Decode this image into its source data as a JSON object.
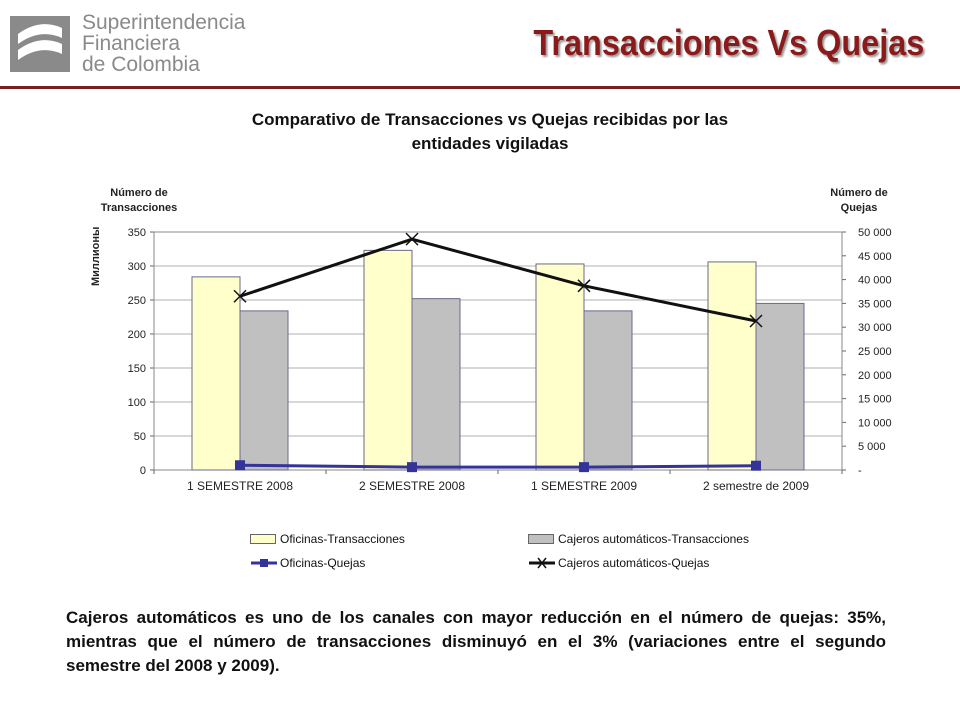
{
  "logo": {
    "icon": "superintendencia-logo-mark",
    "lines": [
      "Superintendencia",
      "Financiera",
      "de Colombia"
    ]
  },
  "slide_title": "Transacciones Vs Quejas",
  "colors": {
    "title_red": "#8b1a1a",
    "oficinas_bar": "#ffffcc",
    "cajeros_bar": "#c0c0c0",
    "oficinas_line": "#333399",
    "cajeros_line": "#111111"
  },
  "chart_data": {
    "type": "bar",
    "title": "Comparativo de Transacciones vs Quejas recibidas por  las entidades vigiladas",
    "title_lines": [
      "Comparativo de Transacciones vs Quejas recibidas por  las",
      "entidades vigiladas"
    ],
    "left_axis_title_lines": [
      "Número de",
      "Transacciones"
    ],
    "right_axis_title_lines": [
      "Número de",
      "Quejas"
    ],
    "left_units_label": "Миллионы",
    "categories": [
      "1 SEMESTRE 2008",
      "2 SEMESTRE 2008",
      "1 SEMESTRE 2009",
      "2 semestre de 2009"
    ],
    "y_left": {
      "min": 0,
      "max": 350,
      "ticks": [
        "0",
        "50",
        "100",
        "150",
        "200",
        "250",
        "300",
        "350"
      ]
    },
    "y_right": {
      "min": 0,
      "max": 50000,
      "ticks": [
        "-",
        "5 000",
        "10 000",
        "15 000",
        "20 000",
        "25 000",
        "30 000",
        "35 000",
        "40 000",
        "45 000",
        "50 000"
      ]
    },
    "grid": true,
    "legend_position": "bottom",
    "series": [
      {
        "name": "Oficinas-Transacciones",
        "kind": "bar",
        "axis": "left",
        "color": "#ffffcc",
        "values": [
          284,
          323,
          303,
          306
        ]
      },
      {
        "name": "Cajeros automáticos-Transacciones",
        "kind": "bar",
        "axis": "left",
        "color": "#c0c0c0",
        "values": [
          234,
          252,
          234,
          245
        ]
      },
      {
        "name": "Oficinas-Quejas",
        "kind": "line",
        "axis": "right",
        "marker": "square",
        "color": "#333399",
        "values": [
          1000,
          600,
          600,
          900
        ]
      },
      {
        "name": "Cajeros automáticos-Quejas",
        "kind": "line",
        "axis": "right",
        "marker": "x",
        "color": "#111111",
        "values": [
          36500,
          48500,
          38700,
          31300
        ]
      }
    ]
  },
  "summary": "Cajeros automáticos es uno de los canales con mayor reducción en el número de quejas: 35%, mientras que el número de transacciones disminuyó en el 3% (variaciones entre el segundo semestre del 2008 y 2009)."
}
